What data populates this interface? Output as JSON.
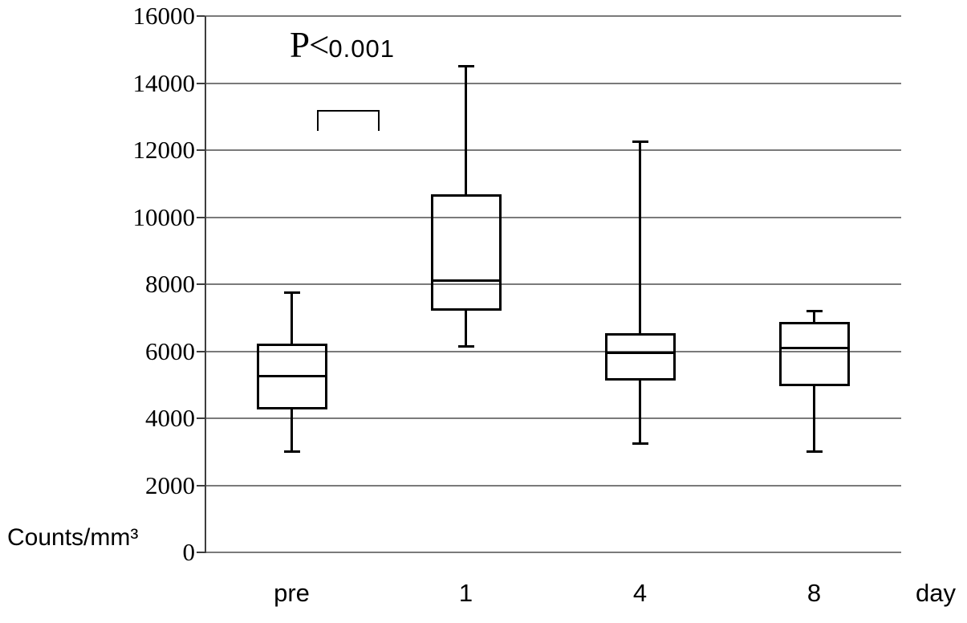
{
  "chart_data": {
    "type": "boxplot",
    "title": "",
    "ylabel": "Counts/mm³",
    "xlabel": "day",
    "ylim": [
      0,
      16000
    ],
    "yticks": [
      0,
      2000,
      4000,
      6000,
      8000,
      10000,
      12000,
      14000,
      16000
    ],
    "grid": true,
    "legend": false,
    "categories": [
      "pre",
      "1",
      "4",
      "8"
    ],
    "series": [
      {
        "category": "pre",
        "whisker_low": 3000,
        "q1": 4300,
        "median": 5250,
        "q3": 6200,
        "whisker_high": 7750
      },
      {
        "category": "1",
        "whisker_low": 6150,
        "q1": 7250,
        "median": 8100,
        "q3": 10650,
        "whisker_high": 14500
      },
      {
        "category": "4",
        "whisker_low": 3250,
        "q1": 5150,
        "median": 5950,
        "q3": 6500,
        "whisker_high": 12250
      },
      {
        "category": "8",
        "whisker_low": 3000,
        "q1": 5000,
        "median": 6100,
        "q3": 6850,
        "whisker_high": 7200
      }
    ],
    "annotation": {
      "text": "P<0.001",
      "prefix": "P<",
      "value": "0.001",
      "between": [
        "pre",
        "1"
      ]
    },
    "colors": {
      "box_stroke": "#000000",
      "gridline": "#7a7a7a",
      "axis": "#3d3d3d",
      "text": "#000000",
      "background": "#ffffff"
    }
  }
}
